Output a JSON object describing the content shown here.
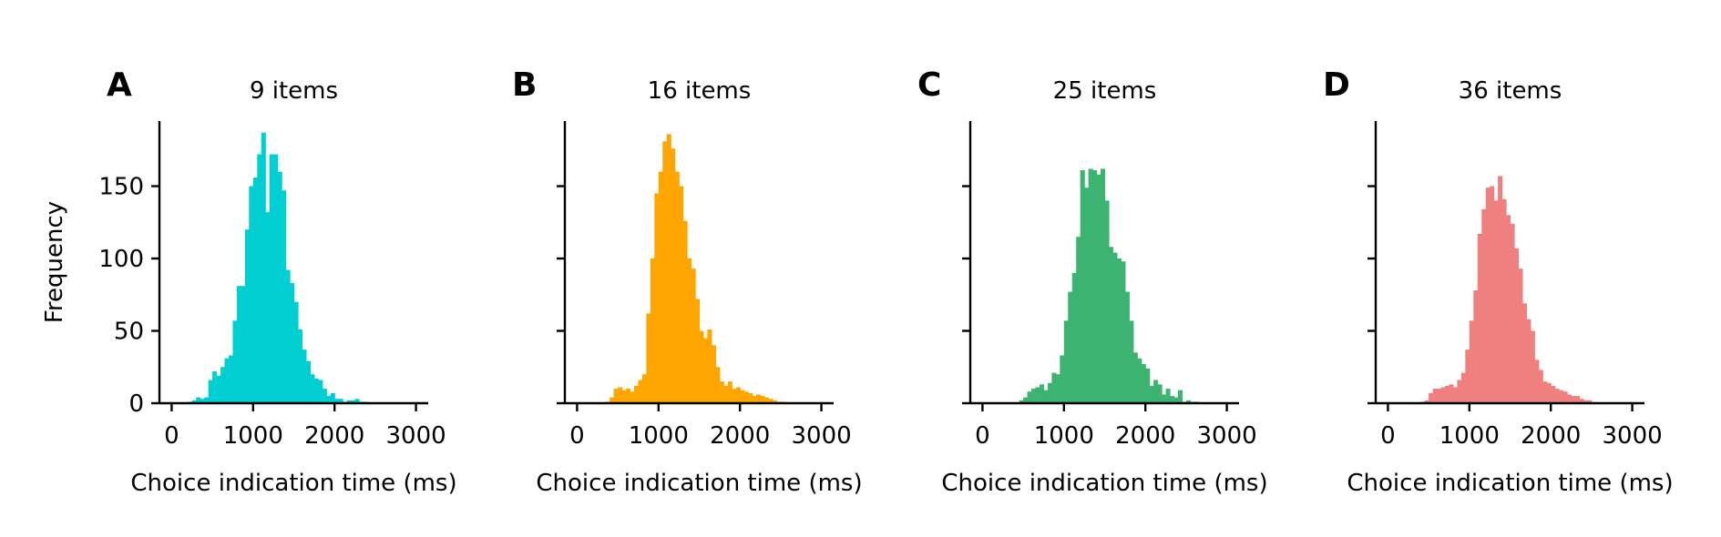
{
  "figure": {
    "ylabel": "Frequency",
    "xlabel": "Choice indication time (ms)"
  },
  "chart_data": [
    {
      "type": "bar",
      "panel": "A",
      "title": "9 items",
      "xlabel": "Choice indication time (ms)",
      "ylabel": "Frequency",
      "color": "#00CED1",
      "xlim": [
        -150,
        3150
      ],
      "ylim": [
        0,
        195
      ],
      "xticks": [
        0,
        1000,
        2000,
        3000
      ],
      "yticks": [
        0,
        50,
        100,
        150
      ],
      "bin_start": 0,
      "bin_width": 50,
      "values": [
        0,
        0,
        0,
        0,
        1,
        2,
        4,
        3,
        4,
        16,
        22,
        19,
        25,
        31,
        33,
        57,
        81,
        81,
        120,
        150,
        156,
        172,
        187,
        132,
        172,
        172,
        160,
        147,
        92,
        83,
        70,
        51,
        37,
        29,
        20,
        17,
        16,
        10,
        5,
        7,
        3,
        3,
        1,
        2,
        2,
        3,
        1,
        1,
        0,
        0,
        0,
        0,
        0,
        0,
        0,
        0,
        0,
        0,
        0,
        0,
        0,
        0
      ]
    },
    {
      "type": "bar",
      "panel": "B",
      "title": "16 items",
      "xlabel": "Choice indication time (ms)",
      "color": "#FFA500",
      "xlim": [
        -150,
        3150
      ],
      "ylim": [
        0,
        195
      ],
      "xticks": [
        0,
        1000,
        2000,
        3000
      ],
      "yticks": [
        0,
        50,
        100,
        150
      ],
      "bin_start": 0,
      "bin_width": 50,
      "values": [
        0,
        0,
        0,
        0,
        0,
        0,
        0,
        1,
        4,
        10,
        11,
        9,
        10,
        8,
        12,
        16,
        20,
        62,
        100,
        145,
        160,
        181,
        186,
        176,
        160,
        150,
        126,
        100,
        93,
        72,
        50,
        45,
        51,
        40,
        25,
        15,
        12,
        15,
        10,
        11,
        9,
        8,
        7,
        5,
        6,
        5,
        4,
        3,
        2,
        1,
        1,
        0,
        0,
        0,
        0,
        0,
        0,
        0,
        0,
        0,
        0,
        0
      ]
    },
    {
      "type": "bar",
      "panel": "C",
      "title": "25 items",
      "xlabel": "Choice indication time (ms)",
      "color": "#3CB371",
      "xlim": [
        -150,
        3150
      ],
      "ylim": [
        0,
        195
      ],
      "xticks": [
        0,
        1000,
        2000,
        3000
      ],
      "yticks": [
        0,
        50,
        100,
        150
      ],
      "bin_start": 0,
      "bin_width": 50,
      "values": [
        0,
        0,
        0,
        0,
        0,
        0,
        0,
        0,
        0,
        2,
        4,
        8,
        10,
        11,
        13,
        9,
        14,
        21,
        20,
        33,
        57,
        77,
        90,
        115,
        161,
        149,
        162,
        161,
        158,
        162,
        140,
        108,
        104,
        100,
        98,
        77,
        57,
        35,
        31,
        27,
        24,
        12,
        16,
        13,
        6,
        10,
        5,
        4,
        9,
        1,
        2,
        1,
        1,
        0,
        0,
        0,
        0,
        0,
        0,
        0,
        0,
        0
      ]
    },
    {
      "type": "bar",
      "panel": "D",
      "title": "36 items",
      "xlabel": "Choice indication time (ms)",
      "color": "#F08080",
      "xlim": [
        -150,
        3150
      ],
      "ylim": [
        0,
        195
      ],
      "xticks": [
        0,
        1000,
        2000,
        3000
      ],
      "yticks": [
        0,
        50,
        100,
        150
      ],
      "bin_start": 0,
      "bin_width": 50,
      "values": [
        0,
        0,
        0,
        0,
        0,
        0,
        0,
        0,
        1,
        2,
        7,
        10,
        10,
        11,
        12,
        13,
        11,
        16,
        21,
        37,
        57,
        78,
        117,
        134,
        149,
        150,
        140,
        157,
        141,
        130,
        124,
        107,
        93,
        69,
        58,
        50,
        30,
        23,
        15,
        14,
        12,
        10,
        9,
        8,
        6,
        5,
        5,
        3,
        2,
        2,
        0,
        0,
        0,
        0,
        0,
        0,
        0,
        0,
        0,
        0,
        0,
        0
      ]
    }
  ]
}
